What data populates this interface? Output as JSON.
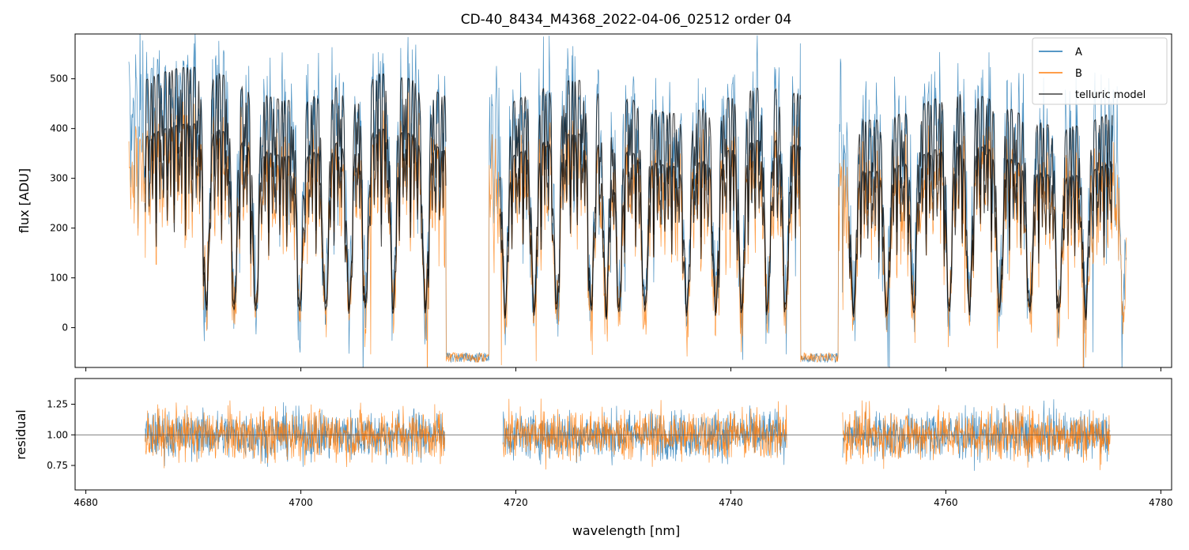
{
  "chart_data": {
    "type": "line",
    "title": "CD-40_8434_M4368_2022-04-06_02512  order 04",
    "xlabel": "wavelength [nm]",
    "xlim": [
      4679,
      4781
    ],
    "x_ticks": [
      4680,
      4700,
      4720,
      4740,
      4760,
      4780
    ],
    "x_tick_labels": [
      "4680",
      "4700",
      "4720",
      "4740",
      "4760",
      "4780"
    ],
    "colors": {
      "A": "#1f77b4",
      "B": "#ff7f0e",
      "telluric": "#000000",
      "ref": "#555555"
    },
    "panels": [
      {
        "name": "flux",
        "ylabel": "flux [ADU]",
        "ylim": [
          -80,
          590
        ],
        "y_ticks": [
          0,
          100,
          200,
          300,
          400,
          500
        ],
        "y_tick_labels": [
          "0",
          "100",
          "200",
          "300",
          "400",
          "500"
        ],
        "series": [
          {
            "name": "A",
            "x_range": [
              4684.0,
              4776.8
            ],
            "level": 450
          },
          {
            "name": "B",
            "x_range": [
              4684.0,
              4776.8
            ],
            "level": 330
          },
          {
            "name": "telluric model",
            "x_range": [
              4685.5,
              4775.5
            ],
            "levels": [
              520,
              400
            ]
          }
        ],
        "gaps": [
          [
            4713.5,
            4717.5
          ],
          [
            4746.5,
            4750.0
          ]
        ],
        "absorption_lines": [
          4691.2,
          4693.8,
          4695.8,
          4699.9,
          4702.3,
          4704.5,
          4706.0,
          4708.6,
          4711.6,
          4719.0,
          4721.7,
          4723.8,
          4727.0,
          4728.4,
          4729.6,
          4732.0,
          4735.9,
          4738.6,
          4741.0,
          4743.4,
          4745.1,
          4751.4,
          4754.5,
          4757.0,
          4760.3,
          4762.2,
          4765.0,
          4767.8,
          4770.5,
          4773.0,
          4776.5
        ],
        "legend": {
          "position": "upper-right",
          "entries": [
            "A",
            "B",
            "telluric model"
          ]
        }
      },
      {
        "name": "residual",
        "ylabel": "residual",
        "ylim": [
          0.55,
          1.46
        ],
        "y_ticks": [
          0.75,
          1.0,
          1.25
        ],
        "y_tick_labels": [
          "0.75",
          "1.00",
          "1.25"
        ],
        "reference_line": 1.0,
        "segments": [
          [
            4685.5,
            4713.4
          ],
          [
            4718.8,
            4745.2
          ],
          [
            4750.4,
            4775.3
          ]
        ],
        "series": [
          {
            "name": "A",
            "mean": 1.0,
            "spread": 0.14
          },
          {
            "name": "B",
            "mean": 1.0,
            "spread": 0.15
          }
        ]
      }
    ]
  }
}
